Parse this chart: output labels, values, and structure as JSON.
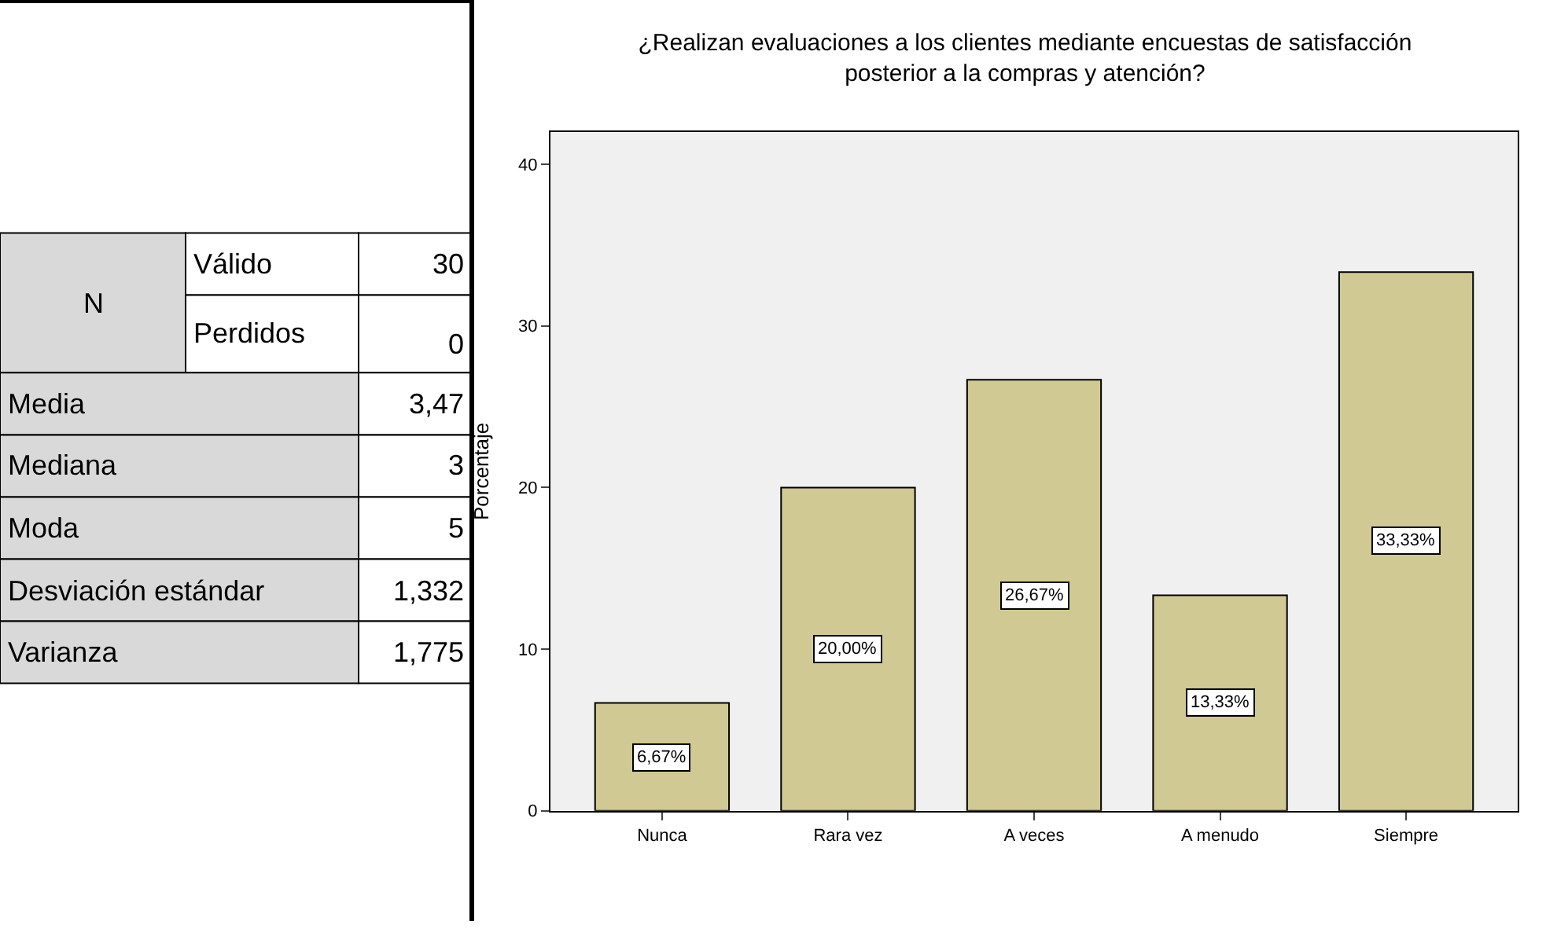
{
  "chart_data": [
    {
      "type": "other",
      "annotations": [
        "N",
        "Válido",
        "30",
        "Perdidos",
        "0",
        "Media",
        "3,47",
        "Mediana",
        "3",
        "Moda",
        "5",
        "Desviación estándar",
        "1,332",
        "Varianza",
        "1,775"
      ]
    },
    {
      "type": "bar",
      "title": "¿Realizan evaluaciones a los clientes mediante encuestas de satisfacción\nposterior a la compras y atención?",
      "ylabel": "Porcentaje",
      "categories": [
        "Nunca",
        "Rara vez",
        "A veces",
        "A menudo",
        "Siempre"
      ],
      "values": [
        6.67,
        20.0,
        26.67,
        13.33,
        33.33
      ],
      "value_labels": [
        "6,67%",
        "20,00%",
        "26,67%",
        "13,33%",
        "33,33%"
      ],
      "color": "#d1c994",
      "ylim": [
        0,
        42
      ],
      "yticks": [
        0,
        10,
        20,
        30,
        40
      ],
      "grid": false,
      "legend": false
    }
  ]
}
